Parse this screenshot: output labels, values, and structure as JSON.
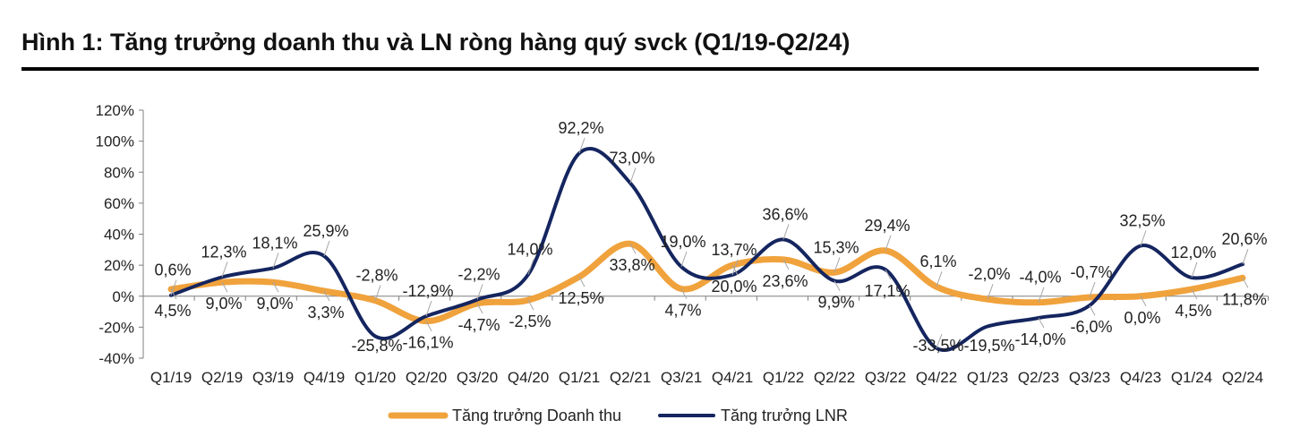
{
  "header": {
    "title": "Hình 1: Tăng trưởng doanh thu và LN ròng hàng quý svck (Q1/19-Q2/24)"
  },
  "colors": {
    "revenue": "#F0A23C",
    "profit": "#14255F",
    "leader": "#A6A6A6",
    "axis": "#7F7F7F"
  },
  "chart_data": {
    "type": "line",
    "title": "",
    "xlabel": "",
    "ylabel": "",
    "ylim": [
      -40,
      120
    ],
    "ytick_step": 20,
    "categories": [
      "Q1/19",
      "Q2/19",
      "Q3/19",
      "Q4/19",
      "Q1/20",
      "Q2/20",
      "Q3/20",
      "Q4/20",
      "Q1/21",
      "Q2/21",
      "Q3/21",
      "Q4/21",
      "Q1/22",
      "Q2/22",
      "Q3/22",
      "Q4/22",
      "Q1/23",
      "Q2/23",
      "Q3/23",
      "Q4/23",
      "Q1/24",
      "Q2/24"
    ],
    "legend_position": "bottom",
    "grid": false,
    "series": [
      {
        "name": "Tăng trưởng Doanh thu",
        "color": "#F0A23C",
        "values": [
          4.5,
          9.0,
          9.0,
          3.3,
          -2.8,
          -16.1,
          -4.7,
          -2.5,
          12.5,
          33.8,
          4.7,
          20.0,
          23.6,
          15.3,
          29.4,
          6.1,
          -2.0,
          -4.0,
          -0.7,
          0.0,
          4.5,
          11.8
        ],
        "labels": [
          "4,5%",
          "9,0%",
          "9,0%",
          "3,3%",
          "-2,8%",
          "-16,1%",
          "-4,7%",
          "-2,5%",
          "12,5%",
          "33,8%",
          "4,7%",
          "20,0%",
          "23,6%",
          "15,3%",
          "29,4%",
          "6,1%",
          "-2,0%",
          "-4,0%",
          "-0,7%",
          "0,0%",
          "4,5%",
          "11,8%"
        ]
      },
      {
        "name": "Tăng trưởng LNR",
        "color": "#14255F",
        "values": [
          0.6,
          12.3,
          18.1,
          25.9,
          -25.8,
          -12.9,
          -2.2,
          14.0,
          92.2,
          73.0,
          19.0,
          13.7,
          36.6,
          9.9,
          17.1,
          -33.5,
          -19.5,
          -14.0,
          -6.0,
          32.5,
          12.0,
          20.6
        ],
        "labels": [
          "0,6%",
          "12,3%",
          "18,1%",
          "25,9%",
          "-25,8%",
          "-12,9%",
          "-2,2%",
          "14,0%",
          "92,2%",
          "73,0%",
          "19,0%",
          "13,7%",
          "36,6%",
          "9,9%",
          "17,1%",
          "-33,5%",
          "-19,5%",
          "-14,0%",
          "-6,0%",
          "32,5%",
          "12,0%",
          "20,6%"
        ]
      }
    ]
  }
}
